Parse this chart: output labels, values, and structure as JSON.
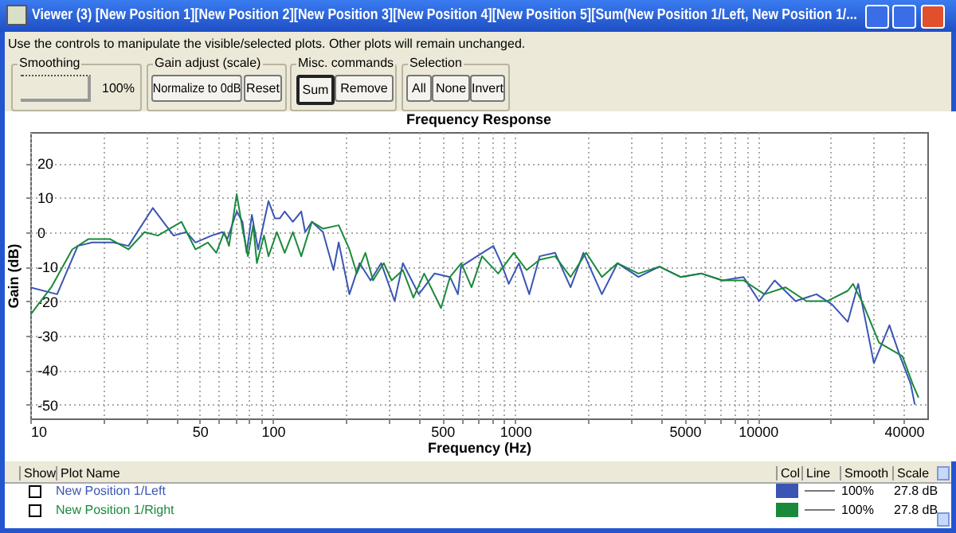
{
  "chart_data": {
    "type": "line",
    "title": "Frequency Response",
    "xlabel": "Frequency (Hz)",
    "ylabel": "Gain (dB)",
    "log": "x",
    "grid": true,
    "legend": "bottom",
    "xlim": [
      10,
      50000
    ],
    "ylim": [
      -54,
      29
    ],
    "xticks": [
      10,
      {
        "value": 20,
        "label": null
      },
      {
        "value": 30,
        "label": null
      },
      {
        "value": 40,
        "label": null
      },
      50,
      {
        "value": 60,
        "label": null
      },
      {
        "value": 70,
        "label": null
      },
      {
        "value": 80,
        "label": null
      },
      {
        "value": 90,
        "label": null
      },
      100,
      {
        "value": 200,
        "label": null
      },
      {
        "value": 300,
        "label": null
      },
      {
        "value": 400,
        "label": null
      },
      500,
      {
        "value": 600,
        "label": null
      },
      {
        "value": 700,
        "label": null
      },
      {
        "value": 800,
        "label": null
      },
      {
        "value": 900,
        "label": null
      },
      1000,
      {
        "value": 2000,
        "label": null
      },
      {
        "value": 3000,
        "label": null
      },
      {
        "value": 4000,
        "label": null
      },
      5000,
      {
        "value": 6000,
        "label": null
      },
      {
        "value": 7000,
        "label": null
      },
      {
        "value": 8000,
        "label": null
      },
      {
        "value": 9000,
        "label": null
      },
      10000,
      {
        "value": 20000,
        "label": null
      },
      {
        "value": 30000,
        "label": null
      },
      40000
    ],
    "yticks": [
      -50,
      -40,
      -30,
      -20,
      -10,
      0,
      10,
      20
    ],
    "series": [
      {
        "name": "New Position 1/Left",
        "color": "#3a55b4",
        "x": [
          10,
          12.9,
          15.7,
          18,
          22,
          25.4,
          32,
          39,
          44,
          48,
          56,
          62,
          65,
          71,
          75,
          78,
          82,
          87,
          96,
          102,
          107,
          112,
          121,
          131,
          136,
          145,
          161,
          178,
          187,
          207,
          228,
          253,
          280,
          318,
          344,
          400,
          464,
          538,
          580,
          597,
          695,
          812,
          875,
          940,
          1035,
          1142,
          1260,
          1460,
          1690,
          1910,
          2275,
          2640,
          3220,
          3930,
          4800,
          5860,
          7150,
          8730,
          10120,
          11730,
          14300,
          17460,
          20260,
          23500,
          25950,
          30100,
          34900,
          38600,
          42700,
          44400
        ],
        "values": [
          -16,
          -18,
          -4,
          -3,
          -3,
          -4,
          7,
          -1,
          0,
          -3,
          -1,
          0,
          -2,
          6,
          3,
          -6,
          5,
          -5,
          9,
          4,
          4,
          6,
          3,
          6,
          0,
          3,
          0,
          -11,
          -3,
          -18,
          -9,
          -14,
          -9,
          -20,
          -9,
          -18,
          -12,
          -13,
          -18,
          -10,
          -7,
          -4,
          -9,
          -15,
          -9,
          -18,
          -7,
          -6,
          -16,
          -6,
          -18,
          -9,
          -13,
          -10,
          -13,
          -12,
          -14,
          -13,
          -20,
          -14,
          -20,
          -18,
          -21,
          -26,
          -15,
          -38,
          -27,
          -36,
          -44,
          -50
        ]
      },
      {
        "name": "New Position 1/Right",
        "color": "#1a8a3a",
        "x": [
          10,
          12.2,
          14.9,
          17.4,
          21.3,
          25.4,
          29.6,
          33.6,
          42,
          48,
          54,
          58.5,
          63,
          66,
          71,
          75,
          79,
          83,
          86,
          92,
          96,
          104,
          112,
          121,
          131,
          145,
          161,
          187,
          207,
          222,
          241,
          259,
          287,
          309,
          344,
          380,
          421,
          494,
          538,
          599,
          660,
          729,
          850,
          985,
          1113,
          1260,
          1460,
          1690,
          1960,
          2275,
          2640,
          3220,
          3930,
          4800,
          5860,
          7150,
          8730,
          10650,
          12990,
          15850,
          19300,
          23500,
          24700,
          27250,
          31600,
          39500,
          43500,
          46000
        ],
        "values": [
          -24,
          -16,
          -5,
          -2,
          -2,
          -5,
          0,
          -1,
          3,
          -5,
          -3,
          -6,
          0,
          -4,
          11,
          1,
          -7,
          2,
          -9,
          -1,
          -7,
          0,
          -6,
          0,
          -7,
          3,
          1,
          2,
          -5,
          -12,
          -6,
          -14,
          -9,
          -14,
          -11,
          -19,
          -12,
          -22,
          -13,
          -9,
          -16,
          -7,
          -12,
          -6,
          -11,
          -8,
          -7,
          -13,
          -6,
          -13,
          -9,
          -12,
          -10,
          -13,
          -12,
          -14,
          -14,
          -18,
          -16,
          -20,
          -20,
          -17,
          -15,
          -21,
          -32,
          -36,
          -44,
          -48
        ]
      }
    ],
    "annotations": [
      "Viewer (3) [New Position 1][New Position 2][New Position 3][New Position 4][New Position 5][Sum(New Position 1/Left, New Position 1/...",
      "Use the controls to manipulate the visible/selected plots.  Other plots will remain unchanged.",
      "Smoothing",
      "100%",
      "Gain adjust (scale)",
      "Normalize to 0dB",
      "Reset",
      "Misc. commands",
      "Sum",
      "Remove",
      "Selection",
      "All",
      "None",
      "Invert",
      "Show",
      "Plot Name",
      "Col",
      "Line",
      "Smooth",
      "Scale",
      "100%",
      "27.8 dB",
      "100%",
      "27.8 dB"
    ]
  }
}
